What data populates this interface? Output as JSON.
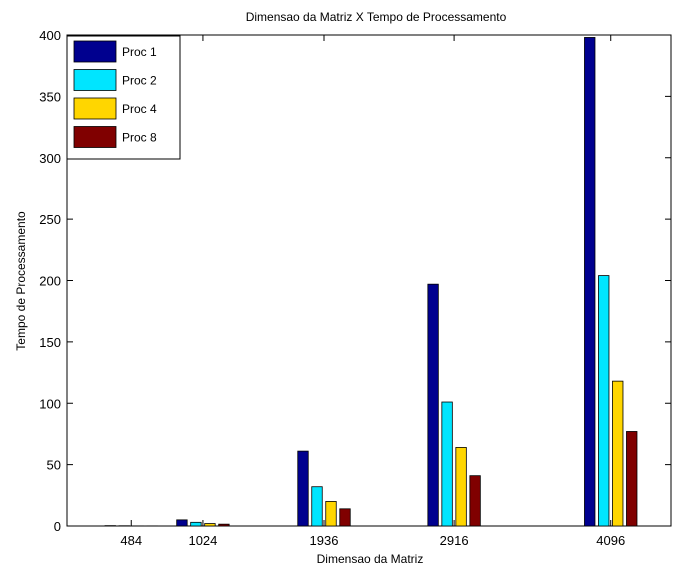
{
  "chart_data": {
    "type": "bar",
    "title": "Dimensao da Matriz X Tempo de Processamento",
    "xlabel": "Dimensao da Matriz",
    "ylabel": "Tempo de Processamento",
    "x": [
      484,
      1024,
      1936,
      2916,
      4096
    ],
    "xlim": [
      0,
      4550
    ],
    "ylim": [
      0,
      400
    ],
    "yticks": [
      0,
      50,
      100,
      150,
      200,
      250,
      300,
      350,
      400
    ],
    "grid": false,
    "legend_position": "top-left",
    "series": [
      {
        "name": "Proc 1",
        "color": "#00008f",
        "values": [
          0.3,
          5,
          61,
          197,
          398
        ]
      },
      {
        "name": "Proc 2",
        "color": "#00e5ff",
        "values": [
          0.2,
          3,
          32,
          101,
          204
        ]
      },
      {
        "name": "Proc 4",
        "color": "#ffd600",
        "values": [
          0.1,
          2,
          20,
          64,
          118
        ]
      },
      {
        "name": "Proc 8",
        "color": "#800000",
        "values": [
          0.1,
          1.5,
          14,
          41,
          77
        ]
      }
    ]
  }
}
